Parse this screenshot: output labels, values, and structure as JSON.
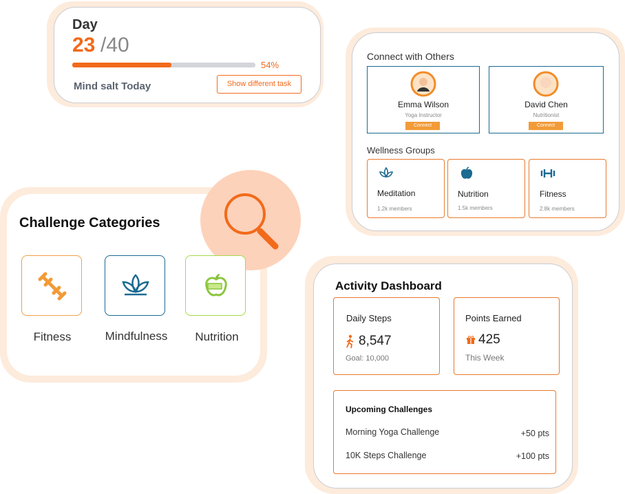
{
  "task_card": {
    "day_label": "Day",
    "day_current": "23",
    "day_total": "/40",
    "progress": {
      "value": 54,
      "label": "54%"
    },
    "task_name": "Mind salt Today",
    "button": "Show different task"
  },
  "connect_card": {
    "title": "Connect with Others",
    "people": [
      {
        "name": "Emma Wilson",
        "role": "Yoga Instructor",
        "button": "Connect"
      },
      {
        "name": "David Chen",
        "role": "Nutritionist",
        "button": "Connect"
      }
    ],
    "groups_title": "Wellness Groups",
    "groups": [
      {
        "name": "Meditation",
        "members": "1.2k members"
      },
      {
        "name": "Nutrition",
        "members": "1.5k members"
      },
      {
        "name": "Fitness",
        "members": "2.8k members"
      }
    ]
  },
  "categories_card": {
    "title": "Challenge Categories",
    "categories": [
      "Fitness",
      "Mindfulness",
      "Nutrition"
    ]
  },
  "dashboard_card": {
    "title": "Activity Dashboard",
    "steps": {
      "label": "Daily Steps",
      "value": "8,547",
      "goal": "Goal: 10,000"
    },
    "points": {
      "label": "Points Earned",
      "value": "425",
      "period": "This Week"
    },
    "upcoming": {
      "title": "Upcoming Challenges",
      "items": [
        {
          "name": "Morning Yoga Challenge",
          "points": "+50 pts"
        },
        {
          "name": "10K Steps Challenge",
          "points": "+100 pts"
        }
      ]
    }
  }
}
